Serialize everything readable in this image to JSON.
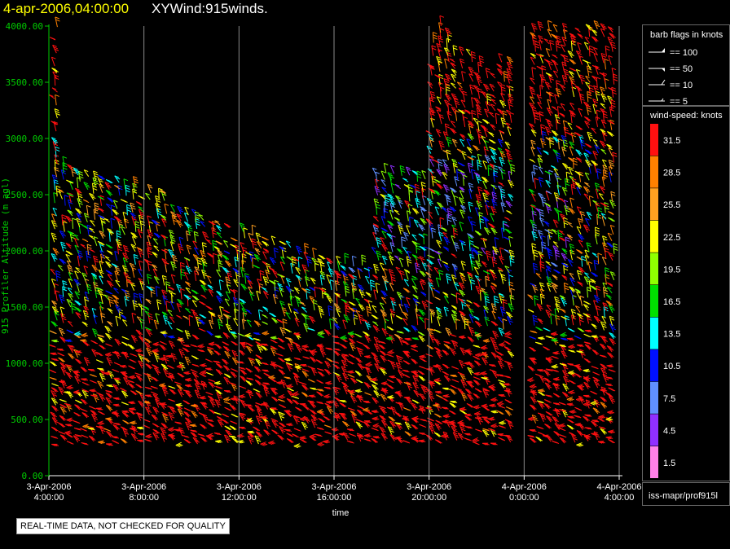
{
  "header": {
    "date": "4-apr-2006,04:00:00",
    "title": "XYWind:915winds."
  },
  "legend": {
    "barb_title": "barb flags in knots",
    "barb_items": [
      "== 100",
      "== 50",
      "== 10",
      "== 5"
    ],
    "speed_title": "wind-speed: knots",
    "colors": [
      "#ff1010",
      "#ff8000",
      "#ffa020",
      "#ffff00",
      "#90ff00",
      "#00e000",
      "#00ffff",
      "#0010ff",
      "#6090ff",
      "#9030ff",
      "#ff80e8"
    ],
    "speed_labels": [
      "31.5",
      "28.5",
      "25.5",
      "22.5",
      "19.5",
      "16.5",
      "13.5",
      "10.5",
      "7.5",
      "4.5",
      "1.5"
    ],
    "footer": "iss-mapr/prof915l"
  },
  "notice": "REAL-TIME DATA, NOT CHECKED FOR QUALITY",
  "chart_data": {
    "type": "scatter",
    "xlabel": "time",
    "ylabel": "915 Profiler Altitude (m agl)",
    "ylim": [
      0,
      4000
    ],
    "yticks": [
      "0.00",
      "500.00",
      "1000.00",
      "1500.00",
      "2000.00",
      "2500.00",
      "3000.00",
      "3500.00",
      "4000.00"
    ],
    "xticks": [
      {
        "line1": "3-Apr-2006",
        "line2": "4:00:00"
      },
      {
        "line1": "3-Apr-2006",
        "line2": "8:00:00"
      },
      {
        "line1": "3-Apr-2006",
        "line2": "12:00:00"
      },
      {
        "line1": "3-Apr-2006",
        "line2": "16:00:00"
      },
      {
        "line1": "3-Apr-2006",
        "line2": "20:00:00"
      },
      {
        "line1": "4-Apr-2006",
        "line2": "0:00:00"
      },
      {
        "line1": "4-Apr-2006",
        "line2": "4:00:00"
      }
    ],
    "xlim_hours": [
      0,
      24
    ],
    "grid": "vertical",
    "profiles": [
      {
        "t": 0.3,
        "top": 4000,
        "bottom": 300,
        "dominant": "high-red"
      },
      {
        "t": 2.2,
        "top": 3300,
        "bottom": 350,
        "dominant": "mixed"
      },
      {
        "t": 4.0,
        "top": 2700,
        "bottom": 300,
        "dominant": "mixed"
      },
      {
        "t": 6.0,
        "top": 2400,
        "bottom": 300,
        "dominant": "red"
      },
      {
        "t": 8.0,
        "top": 2300,
        "bottom": 300,
        "dominant": "red"
      },
      {
        "t": 10.0,
        "top": 2000,
        "bottom": 300,
        "dominant": "red"
      },
      {
        "t": 12.0,
        "top": 1900,
        "bottom": 300,
        "dominant": "red"
      },
      {
        "t": 13.5,
        "top": 4000,
        "bottom": 280,
        "dominant": "red"
      },
      {
        "t": 16.0,
        "top": 4000,
        "bottom": 280,
        "dominant": "red"
      },
      {
        "t": 18.0,
        "top": 3500,
        "bottom": 280,
        "dominant": "red"
      },
      {
        "t": 20.5,
        "top": 4000,
        "bottom": 280,
        "dominant": "red"
      },
      {
        "t": 23.0,
        "top": 4000,
        "bottom": 280,
        "dominant": "red"
      }
    ]
  }
}
